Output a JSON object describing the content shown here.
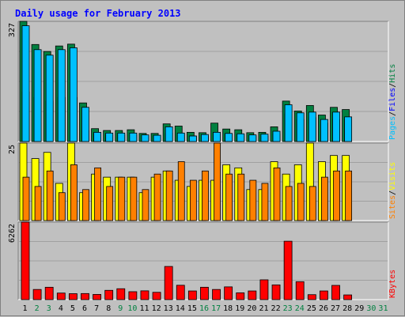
{
  "title": "Daily usage for February 2013",
  "colors": {
    "background": "#c0c0c0",
    "plot_bg": "#c0c0c0",
    "title": "#0000ff",
    "hits": "#008040",
    "files": "#0000ff",
    "pages": "#00c0ff",
    "visits": "#ffff00",
    "sites": "#ff8000",
    "kbytes": "#ff0000",
    "weekday_label": "#000000",
    "weekend_label": "#008040",
    "gridline": "#808080"
  },
  "chart_data": [
    {
      "type": "bar",
      "name": "hits-files-pages",
      "ylabel_parts": [
        {
          "text": "Pages",
          "color": "#00c0ff"
        },
        {
          "text": "/",
          "color": "#000000"
        },
        {
          "text": "Files",
          "color": "#0000ff"
        },
        {
          "text": "/",
          "color": "#000000"
        },
        {
          "text": "Hits",
          "color": "#008040"
        }
      ],
      "ymax_label": "327",
      "ylim": [
        0,
        327
      ],
      "categories": [
        "1",
        "2",
        "3",
        "4",
        "5",
        "6",
        "7",
        "8",
        "9",
        "10",
        "11",
        "12",
        "13",
        "14",
        "15",
        "16",
        "17",
        "18",
        "19",
        "20",
        "21",
        "22",
        "23",
        "24",
        "25",
        "26",
        "27",
        "28",
        "29",
        "30",
        "31"
      ],
      "series": [
        {
          "name": "Hits",
          "values": [
            327,
            264,
            245,
            260,
            265,
            105,
            35,
            30,
            30,
            32,
            22,
            22,
            48,
            42,
            25,
            24,
            50,
            34,
            32,
            24,
            25,
            40,
            110,
            83,
            98,
            72,
            93,
            87,
            0,
            0,
            0
          ]
        },
        {
          "name": "Files",
          "values": [
            135,
            120,
            110,
            120,
            120,
            30,
            20,
            18,
            18,
            18,
            15,
            15,
            22,
            20,
            15,
            14,
            25,
            20,
            18,
            15,
            15,
            20,
            75,
            60,
            65,
            50,
            60,
            60,
            0,
            0,
            0
          ]
        },
        {
          "name": "Pages",
          "values": [
            315,
            250,
            235,
            250,
            255,
            93,
            25,
            23,
            23,
            23,
            18,
            17,
            40,
            23,
            15,
            19,
            25,
            22,
            21,
            18,
            20,
            28,
            100,
            78,
            80,
            60,
            80,
            67,
            0,
            0,
            0
          ]
        }
      ]
    },
    {
      "type": "bar",
      "name": "visits-sites",
      "ylabel_parts": [
        {
          "text": "Sites",
          "color": "#ff8000"
        },
        {
          "text": "/",
          "color": "#000000"
        },
        {
          "text": "Visits",
          "color": "#ffff00"
        }
      ],
      "ymax_label": "25",
      "ylim": [
        0,
        25
      ],
      "categories": [
        "1",
        "2",
        "3",
        "4",
        "5",
        "6",
        "7",
        "8",
        "9",
        "10",
        "11",
        "12",
        "13",
        "14",
        "15",
        "16",
        "17",
        "18",
        "19",
        "20",
        "21",
        "22",
        "23",
        "24",
        "25",
        "26",
        "27",
        "28",
        "29",
        "30",
        "31"
      ],
      "series": [
        {
          "name": "Visits",
          "values": [
            25,
            20,
            22,
            12,
            25,
            9,
            15,
            14,
            14,
            14,
            9,
            14,
            16,
            13,
            11,
            13,
            13,
            18,
            17,
            10,
            10,
            19,
            15,
            18,
            25,
            19,
            21,
            21,
            0,
            0,
            0
          ]
        },
        {
          "name": "Sites",
          "values": [
            14,
            11,
            16,
            9,
            18,
            10,
            17,
            11,
            14,
            14,
            10,
            15,
            16,
            19,
            13,
            16,
            25,
            15,
            15,
            13,
            12,
            17,
            11,
            12,
            11,
            14,
            16,
            16,
            0,
            0,
            0
          ]
        }
      ]
    },
    {
      "type": "bar",
      "name": "kbytes",
      "ylabel_parts": [
        {
          "text": "KBytes",
          "color": "#ff0000"
        }
      ],
      "ymax_label": "6262",
      "ylim": [
        0,
        6262
      ],
      "categories": [
        "1",
        "2",
        "3",
        "4",
        "5",
        "6",
        "7",
        "8",
        "9",
        "10",
        "11",
        "12",
        "13",
        "14",
        "15",
        "16",
        "17",
        "18",
        "19",
        "20",
        "21",
        "22",
        "23",
        "24",
        "25",
        "26",
        "27",
        "28",
        "29",
        "30",
        "31"
      ],
      "series": [
        {
          "name": "KBytes",
          "values": [
            6262,
            820,
            1000,
            530,
            480,
            490,
            420,
            750,
            880,
            640,
            710,
            590,
            2680,
            1160,
            700,
            1000,
            820,
            1030,
            550,
            700,
            1600,
            1190,
            4720,
            1450,
            400,
            700,
            1150,
            380,
            0,
            0,
            0
          ]
        }
      ]
    }
  ],
  "x_labels": [
    "1",
    "2",
    "3",
    "4",
    "5",
    "6",
    "7",
    "8",
    "9",
    "10",
    "11",
    "12",
    "13",
    "14",
    "15",
    "16",
    "17",
    "18",
    "19",
    "20",
    "21",
    "22",
    "23",
    "24",
    "25",
    "26",
    "27",
    "28",
    "29",
    "30",
    "31"
  ],
  "weekend_days": [
    2,
    3,
    9,
    10,
    16,
    17,
    23,
    24,
    30,
    31
  ]
}
